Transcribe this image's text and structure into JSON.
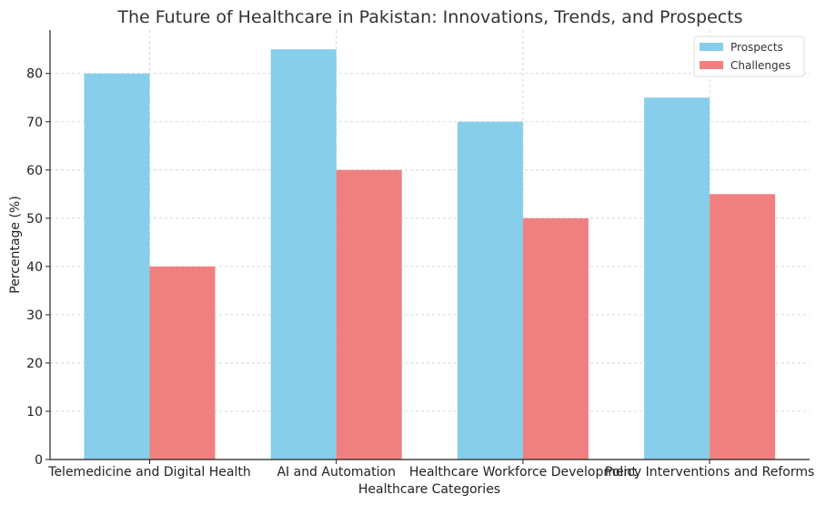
{
  "chart_data": {
    "type": "bar",
    "title": "The Future of Healthcare in Pakistan: Innovations, Trends, and Prospects",
    "xlabel": "Healthcare Categories",
    "ylabel": "Percentage (%)",
    "categories": [
      "Telemedicine and Digital Health",
      "AI and Automation",
      "Healthcare Workforce Development",
      "Policy Interventions and Reforms"
    ],
    "series": [
      {
        "name": "Prospects",
        "values": [
          80,
          85,
          70,
          75
        ],
        "color": "#87ceeb"
      },
      {
        "name": "Challenges",
        "values": [
          40,
          60,
          50,
          55
        ],
        "color": "#f08080"
      }
    ],
    "ylim": [
      0,
      89
    ],
    "yticks": [
      0,
      10,
      20,
      30,
      40,
      50,
      60,
      70,
      80
    ],
    "grid": true,
    "legend_position": "top-right"
  }
}
